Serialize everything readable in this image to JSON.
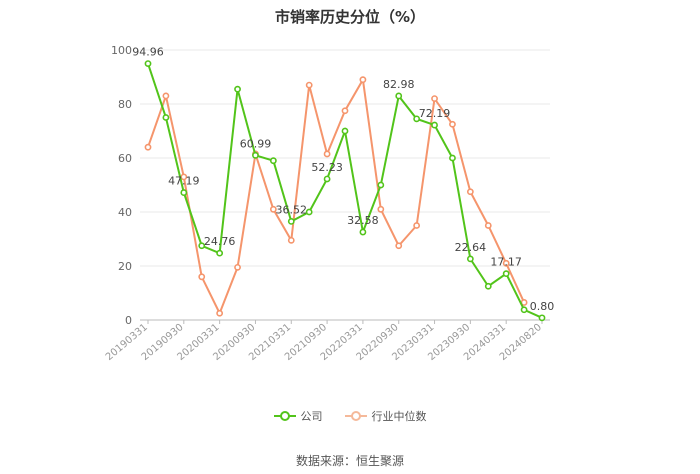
{
  "chart_data": {
    "type": "line",
    "title": "市销率历史分位（%）",
    "ylim": [
      0,
      100
    ],
    "yticks": [
      0,
      20,
      40,
      60,
      80,
      100
    ],
    "x_tick_labels": [
      "20190331",
      "20190930",
      "20200331",
      "20200930",
      "20210331",
      "20210930",
      "20220331",
      "20220930",
      "20230331",
      "20230930",
      "20240331",
      "20240820"
    ],
    "grid": true,
    "legend_position": "bottom",
    "series": [
      {
        "name": "公司",
        "color": "#52c41a",
        "values": [
          94.96,
          75.0,
          47.19,
          27.5,
          24.76,
          85.5,
          60.99,
          59.0,
          36.52,
          40.0,
          52.23,
          70.0,
          32.58,
          50.0,
          82.98,
          74.5,
          72.19,
          60.0,
          22.64,
          12.5,
          17.17,
          3.8,
          0.8
        ],
        "labels": {
          "0": "94.96",
          "2": "47.19",
          "4": "24.76",
          "6": "60.99",
          "8": "36.52",
          "10": "52.23",
          "12": "32.58",
          "14": "82.98",
          "16": "72.19",
          "18": "22.64",
          "20": "17.17",
          "22": "0.80"
        }
      },
      {
        "name": "行业中位数",
        "color": "#f5956c",
        "values": [
          64.0,
          83.0,
          53.0,
          16.0,
          2.5,
          19.5,
          61.5,
          41.0,
          29.5,
          87.0,
          61.5,
          77.5,
          89.0,
          41.0,
          27.5,
          35.0,
          82.0,
          72.5,
          47.5,
          35.0,
          21.0,
          6.5,
          null
        ]
      }
    ]
  },
  "legend": {
    "company": "公司",
    "industry": "行业中位数"
  },
  "source_text": "数据来源：恒生聚源"
}
